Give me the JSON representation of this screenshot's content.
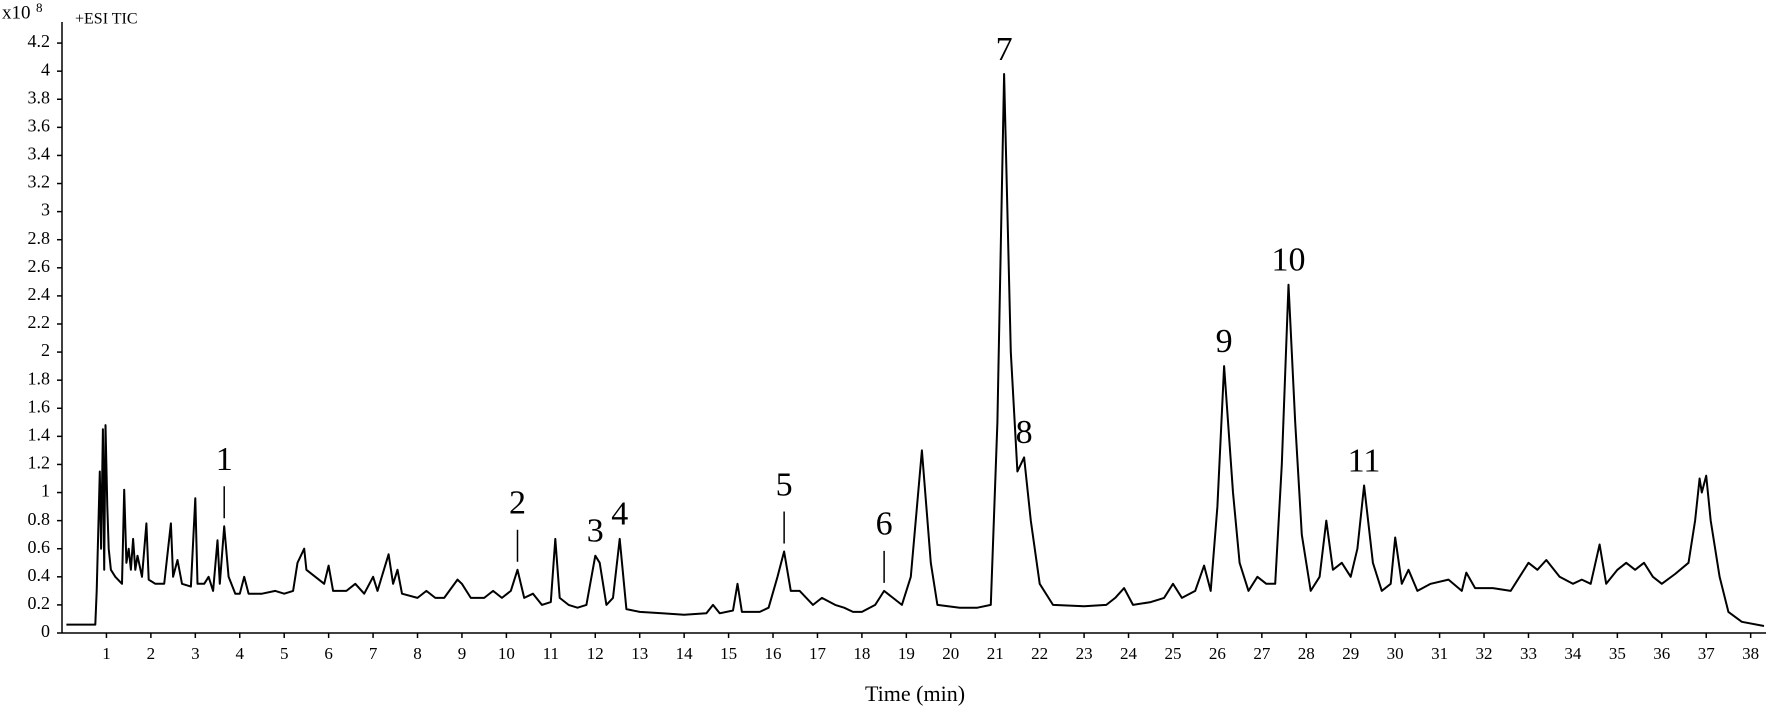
{
  "chart_data": {
    "type": "line",
    "y_multiplier": "x10",
    "y_exponent": "8",
    "trace_label": "+ESI TIC",
    "x_label": "Time (min)",
    "color": "#000000",
    "xlim": [
      0,
      38.3
    ],
    "ylim": [
      0,
      4.35
    ],
    "xticks": [
      1,
      2,
      3,
      4,
      5,
      6,
      7,
      8,
      9,
      10,
      11,
      12,
      13,
      14,
      15,
      16,
      17,
      18,
      19,
      20,
      21,
      22,
      23,
      24,
      25,
      26,
      27,
      28,
      29,
      30,
      31,
      32,
      33,
      34,
      35,
      36,
      37,
      38
    ],
    "yticks": [
      0,
      0.2,
      0.4,
      0.6,
      0.8,
      1,
      1.2,
      1.4,
      1.6,
      1.8,
      2,
      2.2,
      2.4,
      2.6,
      2.8,
      3,
      3.2,
      3.4,
      3.6,
      3.8,
      4,
      4.2
    ],
    "x": [
      0.1,
      0.75,
      0.78,
      0.85,
      0.88,
      0.92,
      0.95,
      0.98,
      1.02,
      1.05,
      1.1,
      1.2,
      1.35,
      1.4,
      1.45,
      1.5,
      1.55,
      1.6,
      1.65,
      1.7,
      1.8,
      1.9,
      1.95,
      2.1,
      2.3,
      2.45,
      2.5,
      2.6,
      2.7,
      2.9,
      3.0,
      3.05,
      3.2,
      3.3,
      3.4,
      3.5,
      3.55,
      3.65,
      3.75,
      3.9,
      4.0,
      4.1,
      4.2,
      4.5,
      4.8,
      5.0,
      5.2,
      5.3,
      5.45,
      5.5,
      5.7,
      5.9,
      6.0,
      6.1,
      6.4,
      6.6,
      6.8,
      7.0,
      7.1,
      7.35,
      7.45,
      7.55,
      7.65,
      8.0,
      8.2,
      8.4,
      8.6,
      8.9,
      9.0,
      9.2,
      9.5,
      9.7,
      9.9,
      10.1,
      10.25,
      10.4,
      10.6,
      10.8,
      11.0,
      11.1,
      11.2,
      11.4,
      11.6,
      11.8,
      12.0,
      12.1,
      12.25,
      12.4,
      12.55,
      12.7,
      13,
      13.5,
      14,
      14.5,
      14.65,
      14.8,
      15.1,
      15.2,
      15.3,
      15.7,
      15.9,
      16.1,
      16.25,
      16.4,
      16.55,
      16.6,
      16.9,
      17.1,
      17.4,
      17.6,
      17.8,
      18.0,
      18.3,
      18.5,
      18.7,
      18.9,
      19.1,
      19.35,
      19.55,
      19.7,
      20.2,
      20.6,
      20.9,
      21.05,
      21.2,
      21.35,
      21.5,
      21.65,
      21.8,
      22.0,
      22.3,
      23,
      23.5,
      23.7,
      23.9,
      24.1,
      24.5,
      24.8,
      25.0,
      25.2,
      25.5,
      25.7,
      25.85,
      26.0,
      26.15,
      26.35,
      26.5,
      26.7,
      26.9,
      27.1,
      27.3,
      27.45,
      27.6,
      27.75,
      27.9,
      28.1,
      28.3,
      28.45,
      28.6,
      28.8,
      29.0,
      29.15,
      29.3,
      29.5,
      29.7,
      29.9,
      30.0,
      30.15,
      30.3,
      30.5,
      30.8,
      31.2,
      31.5,
      31.6,
      31.8,
      32.2,
      32.6,
      32.8,
      33.0,
      33.2,
      33.4,
      33.7,
      34.0,
      34.2,
      34.4,
      34.6,
      34.75,
      35.0,
      35.2,
      35.4,
      35.6,
      35.8,
      36.0,
      36.3,
      36.6,
      36.75,
      36.85,
      36.9,
      37.0,
      37.1,
      37.3,
      37.5,
      37.8,
      38.3
    ],
    "values": [
      0.06,
      0.06,
      0.3,
      1.15,
      0.6,
      1.45,
      0.45,
      1.48,
      0.9,
      0.6,
      0.45,
      0.4,
      0.35,
      1.02,
      0.5,
      0.6,
      0.45,
      0.67,
      0.45,
      0.55,
      0.4,
      0.78,
      0.38,
      0.35,
      0.35,
      0.78,
      0.4,
      0.52,
      0.35,
      0.33,
      0.96,
      0.35,
      0.35,
      0.4,
      0.3,
      0.66,
      0.35,
      0.76,
      0.4,
      0.28,
      0.28,
      0.4,
      0.28,
      0.28,
      0.3,
      0.28,
      0.3,
      0.5,
      0.6,
      0.45,
      0.4,
      0.35,
      0.48,
      0.3,
      0.3,
      0.35,
      0.28,
      0.4,
      0.3,
      0.56,
      0.35,
      0.45,
      0.28,
      0.25,
      0.3,
      0.25,
      0.25,
      0.38,
      0.35,
      0.25,
      0.25,
      0.3,
      0.25,
      0.3,
      0.45,
      0.25,
      0.28,
      0.2,
      0.22,
      0.67,
      0.25,
      0.2,
      0.18,
      0.2,
      0.55,
      0.5,
      0.2,
      0.25,
      0.67,
      0.17,
      0.15,
      0.14,
      0.13,
      0.14,
      0.2,
      0.14,
      0.16,
      0.35,
      0.15,
      0.15,
      0.18,
      0.4,
      0.58,
      0.3,
      0.3,
      0.3,
      0.2,
      0.25,
      0.2,
      0.18,
      0.15,
      0.15,
      0.2,
      0.3,
      0.25,
      0.2,
      0.4,
      1.3,
      0.5,
      0.2,
      0.18,
      0.18,
      0.2,
      1.5,
      3.98,
      2.0,
      1.15,
      1.25,
      0.8,
      0.35,
      0.2,
      0.19,
      0.2,
      0.25,
      0.32,
      0.2,
      0.22,
      0.25,
      0.35,
      0.25,
      0.3,
      0.48,
      0.3,
      0.9,
      1.9,
      1.0,
      0.5,
      0.3,
      0.4,
      0.35,
      0.35,
      1.2,
      2.48,
      1.5,
      0.7,
      0.3,
      0.4,
      0.8,
      0.45,
      0.5,
      0.4,
      0.6,
      1.05,
      0.5,
      0.3,
      0.35,
      0.68,
      0.35,
      0.45,
      0.3,
      0.35,
      0.38,
      0.3,
      0.43,
      0.32,
      0.32,
      0.3,
      0.4,
      0.5,
      0.45,
      0.52,
      0.4,
      0.35,
      0.38,
      0.35,
      0.63,
      0.35,
      0.45,
      0.5,
      0.45,
      0.5,
      0.4,
      0.35,
      0.42,
      0.5,
      0.8,
      1.1,
      1.0,
      1.12,
      0.8,
      0.4,
      0.15,
      0.08,
      0.05
    ],
    "annotations": [
      {
        "text": "1",
        "x": 3.65,
        "y": 0.76,
        "leader": true
      },
      {
        "text": "2",
        "x": 10.25,
        "y": 0.45,
        "leader": true
      },
      {
        "text": "3",
        "x": 12.0,
        "y": 0.55,
        "leader": false
      },
      {
        "text": "4",
        "x": 12.55,
        "y": 0.67,
        "leader": false
      },
      {
        "text": "5",
        "x": 16.25,
        "y": 0.58,
        "leader": true
      },
      {
        "text": "6",
        "x": 18.5,
        "y": 0.3,
        "leader": true
      },
      {
        "text": "7",
        "x": 21.2,
        "y": 3.98,
        "leader": false
      },
      {
        "text": "8",
        "x": 21.65,
        "y": 1.25,
        "leader": false
      },
      {
        "text": "9",
        "x": 26.15,
        "y": 1.9,
        "leader": false
      },
      {
        "text": "10",
        "x": 27.6,
        "y": 2.48,
        "leader": false
      },
      {
        "text": "11",
        "x": 29.3,
        "y": 1.05,
        "leader": false
      }
    ]
  }
}
